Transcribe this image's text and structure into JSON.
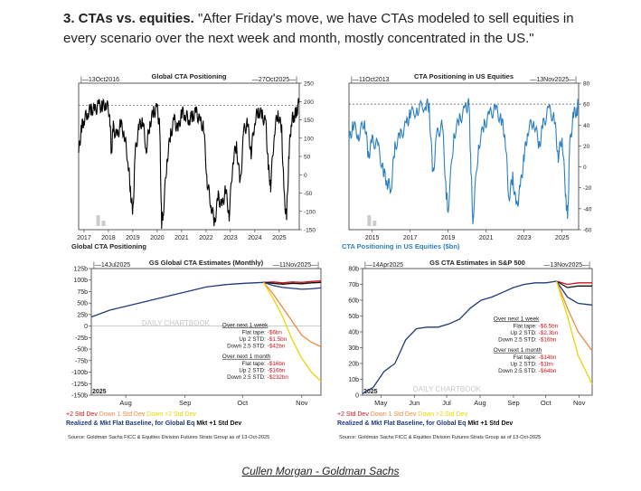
{
  "heading": {
    "prefix": "3. CTAs vs. equities.",
    "quote": " \"After Friday's move, we have CTAs modeled to sell equities in every scenario over the next week and month, mostly concentrated in the US.\""
  },
  "caption": "Cullen Morgan - Goldman Sachs",
  "colors": {
    "black": "#000000",
    "blue": "#2a7fc0",
    "navy": "#1f3a7a",
    "red": "#d0141c",
    "orange": "#f08a3c",
    "yellow": "#e8d600",
    "grey": "#888888"
  },
  "chart_data": [
    {
      "id": "global-cta",
      "type": "line",
      "title": "Global CTA Positioning",
      "start_label": "13Oct2016",
      "end_label": "27Oct2025",
      "xlabel": "Global CTA Positioning",
      "x_ticks": [
        "2017",
        "2018",
        "2019",
        "2020",
        "2021",
        "2022",
        "2023",
        "2024",
        "2025"
      ],
      "x_range": [
        2016.78,
        2025.82
      ],
      "ylim": [
        -150,
        250
      ],
      "y_ticks": [
        -150,
        -100,
        -50,
        0,
        50,
        100,
        150,
        200,
        250
      ],
      "ref_line": 190,
      "series": [
        {
          "name": "Global CTA Positioning",
          "color": "#000000",
          "x": [
            2016.78,
            2016.9,
            2017.0,
            2017.15,
            2017.3,
            2017.45,
            2017.6,
            2017.75,
            2017.9,
            2018.05,
            2018.12,
            2018.2,
            2018.35,
            2018.5,
            2018.65,
            2018.8,
            2018.9,
            2019.0,
            2019.1,
            2019.25,
            2019.4,
            2019.55,
            2019.7,
            2019.85,
            2020.0,
            2020.1,
            2020.18,
            2020.25,
            2020.4,
            2020.55,
            2020.7,
            2020.85,
            2021.0,
            2021.15,
            2021.3,
            2021.45,
            2021.6,
            2021.75,
            2021.9,
            2022.05,
            2022.2,
            2022.35,
            2022.5,
            2022.65,
            2022.8,
            2022.95,
            2023.1,
            2023.25,
            2023.4,
            2023.55,
            2023.7,
            2023.85,
            2024.0,
            2024.15,
            2024.3,
            2024.45,
            2024.55,
            2024.65,
            2024.8,
            2024.95,
            2025.1,
            2025.2,
            2025.3,
            2025.4,
            2025.5,
            2025.6,
            2025.7,
            2025.82
          ],
          "values": [
            60,
            130,
            150,
            170,
            180,
            175,
            190,
            185,
            195,
            170,
            60,
            130,
            100,
            140,
            110,
            40,
            -40,
            -110,
            60,
            130,
            150,
            70,
            140,
            170,
            180,
            130,
            -130,
            -100,
            40,
            110,
            150,
            120,
            170,
            165,
            150,
            160,
            170,
            145,
            130,
            -20,
            -80,
            -130,
            -60,
            -90,
            -40,
            -110,
            40,
            80,
            -30,
            120,
            140,
            60,
            150,
            175,
            160,
            140,
            20,
            -30,
            120,
            170,
            120,
            -60,
            -120,
            60,
            150,
            160,
            170,
            200
          ]
        }
      ]
    },
    {
      "id": "cta-us-equities",
      "type": "line",
      "title": "CTA Positioning in US Equities",
      "start_label": "11Oct2013",
      "end_label": "13Nov2025",
      "xlabel": "CTA Positioning in US Equities ($bn)",
      "x_ticks": [
        "2015",
        "2017",
        "2019",
        "2021",
        "2023",
        "2025"
      ],
      "x_range": [
        2013.78,
        2025.87
      ],
      "ylim": [
        -60,
        80
      ],
      "y_ticks": [
        -60,
        -40,
        -20,
        0,
        20,
        40,
        60,
        80
      ],
      "ref_line": 60,
      "series": [
        {
          "name": "CTA Positioning in US Equities ($bn)",
          "color": "#2a7fc0",
          "x": [
            2013.78,
            2014.0,
            2014.3,
            2014.6,
            2014.8,
            2015.0,
            2015.3,
            2015.6,
            2015.8,
            2016.0,
            2016.2,
            2016.5,
            2016.8,
            2017.0,
            2017.4,
            2017.8,
            2018.0,
            2018.2,
            2018.4,
            2018.7,
            2018.9,
            2019.0,
            2019.3,
            2019.6,
            2019.9,
            2020.1,
            2020.2,
            2020.3,
            2020.6,
            2020.9,
            2021.2,
            2021.5,
            2021.8,
            2022.0,
            2022.2,
            2022.4,
            2022.6,
            2022.8,
            2023.0,
            2023.2,
            2023.5,
            2023.8,
            2024.0,
            2024.3,
            2024.6,
            2024.8,
            2025.0,
            2025.2,
            2025.3,
            2025.4,
            2025.6,
            2025.8,
            2025.87
          ],
          "values": [
            25,
            40,
            30,
            45,
            10,
            25,
            20,
            -5,
            -15,
            -20,
            20,
            30,
            40,
            50,
            55,
            60,
            58,
            -10,
            30,
            40,
            -25,
            -40,
            30,
            45,
            55,
            60,
            0,
            -50,
            20,
            40,
            50,
            55,
            45,
            30,
            -30,
            -10,
            -40,
            -20,
            10,
            35,
            45,
            20,
            40,
            55,
            45,
            10,
            30,
            -30,
            -50,
            20,
            50,
            55,
            65
          ]
        }
      ]
    },
    {
      "id": "gs-cta-estimates-monthly",
      "type": "line",
      "title": "GS Global CTA Estimates (Monthly)",
      "start_label": "14Jul2025",
      "end_label": "11Nov2025",
      "x_ticks": [
        "Aug",
        "Sep",
        "Oct",
        "Nov"
      ],
      "year_label": "2025",
      "watermark": "DAILY CHARTBOOK",
      "x_range": [
        0,
        120
      ],
      "x_tick_positions": [
        18,
        49,
        79,
        110
      ],
      "ylim": [
        -150,
        125
      ],
      "y_ticks": [
        "125b",
        "100b",
        "75b",
        "50b",
        "25b",
        "0",
        "-25b",
        "-50b",
        "-75b",
        "-100b",
        "-125b",
        "-150b"
      ],
      "y_tick_values": [
        125,
        100,
        75,
        50,
        25,
        0,
        -25,
        -50,
        -75,
        -100,
        -125,
        -150
      ],
      "series": [
        {
          "name": "Realized",
          "color": "#1f3a7a",
          "x": [
            0,
            10,
            20,
            30,
            40,
            50,
            60,
            70,
            80,
            90
          ],
          "values": [
            20,
            35,
            45,
            55,
            65,
            75,
            85,
            90,
            93,
            95
          ]
        },
        {
          "name": "+2 Std Dev",
          "color": "#d0141c",
          "x": [
            90,
            95,
            100,
            105,
            110,
            115,
            120
          ],
          "values": [
            95,
            96,
            94,
            96,
            95,
            97,
            98
          ]
        },
        {
          "name": "Mkt +1 Std Dev",
          "color": "#111111",
          "x": [
            90,
            95,
            100,
            105,
            110,
            115,
            120
          ],
          "values": [
            95,
            93,
            91,
            93,
            92,
            94,
            95
          ]
        },
        {
          "name": "Flat Baseline",
          "color": "#1f3a7a",
          "x": [
            90,
            95,
            100,
            105,
            110,
            115,
            120
          ],
          "values": [
            95,
            88,
            84,
            82,
            80,
            81,
            83
          ]
        },
        {
          "name": "Down 1 Std Dev",
          "color": "#f08a3c",
          "x": [
            90,
            95,
            100,
            105,
            110,
            115,
            120
          ],
          "values": [
            95,
            70,
            40,
            10,
            -20,
            -35,
            -45
          ]
        },
        {
          "name": "Down >2 Std Dev",
          "color": "#e8d600",
          "x": [
            90,
            95,
            100,
            105,
            110,
            115,
            120
          ],
          "values": [
            95,
            60,
            20,
            -30,
            -70,
            -100,
            -120
          ]
        }
      ],
      "annotation": {
        "week_title": "Over next 1 week",
        "week_lines": [
          [
            "Flat tape:",
            "-$6bn"
          ],
          [
            "Up 2 STD:",
            "-$1.5bn"
          ],
          [
            "Down 2.5 STD:",
            "-$42bn"
          ]
        ],
        "month_title": "Over next 1 month",
        "month_lines": [
          [
            "Flat tape:",
            "-$16bn"
          ],
          [
            "Up 2 STD:",
            "-$16bn"
          ],
          [
            "Down 2.5 STD:",
            "-$232bn"
          ]
        ]
      },
      "legend_line1": [
        [
          "+2 Std Dev",
          "#d0141c"
        ],
        [
          " Down 1 Std Dev",
          "#f08a3c"
        ],
        [
          " Down >2 Std Dev",
          "#e8d600"
        ]
      ],
      "legend_line2": "Realized & Mkt Flat Baseline, for Global Eq",
      "legend_line2b": " Mkt +1 Std Dev",
      "source": "Source: Goldman Sachs FICC & Equities Division Futures Strats Group as of 13-Oct-2025"
    },
    {
      "id": "gs-cta-estimates-sp500",
      "type": "line",
      "title": "GS CTA Estimates in S&P 500",
      "start_label": "14Apr2025",
      "end_label": "13Nov2025",
      "x_ticks": [
        "May",
        "Jun",
        "Jul",
        "Aug",
        "Sep",
        "Oct",
        "Nov"
      ],
      "year_label": "2025",
      "watermark": "DAILY CHARTBOOK",
      "x_range": [
        0,
        213
      ],
      "x_tick_positions": [
        17,
        48,
        78,
        109,
        140,
        170,
        201
      ],
      "ylim": [
        0,
        80
      ],
      "y_ticks": [
        "80b",
        "70b",
        "60b",
        "50b",
        "40b",
        "30b",
        "20b",
        "10b",
        "0"
      ],
      "y_tick_values": [
        80,
        70,
        60,
        50,
        40,
        30,
        20,
        10,
        0
      ],
      "series": [
        {
          "name": "Realized",
          "color": "#1f3a7a",
          "x": [
            0,
            10,
            20,
            30,
            40,
            50,
            60,
            70,
            80,
            90,
            100,
            110,
            120,
            130,
            140,
            150,
            160,
            170,
            180
          ],
          "values": [
            1,
            5,
            15,
            20,
            35,
            42,
            43,
            43,
            45,
            48,
            55,
            60,
            62,
            65,
            68,
            70,
            71,
            71,
            72
          ]
        },
        {
          "name": "+2 Std Dev",
          "color": "#d0141c",
          "x": [
            180,
            190,
            200,
            213
          ],
          "values": [
            72,
            70,
            71,
            71
          ]
        },
        {
          "name": "Mkt +1 Std Dev",
          "color": "#111111",
          "x": [
            180,
            190,
            200,
            213
          ],
          "values": [
            72,
            68,
            69,
            69
          ]
        },
        {
          "name": "Flat Baseline",
          "color": "#1f3a7a",
          "x": [
            180,
            190,
            200,
            213
          ],
          "values": [
            72,
            62,
            58,
            57
          ]
        },
        {
          "name": "Down 1 Std Dev",
          "color": "#f08a3c",
          "x": [
            180,
            190,
            200,
            213
          ],
          "values": [
            72,
            55,
            40,
            28
          ]
        },
        {
          "name": "Down >2 Std Dev",
          "color": "#e8d600",
          "x": [
            180,
            190,
            200,
            213
          ],
          "values": [
            72,
            50,
            25,
            7
          ]
        }
      ],
      "annotation": {
        "week_title": "Over next 1 week",
        "week_lines": [
          [
            "Flat tape:",
            "-$6.5bn"
          ],
          [
            "Up 2 STD:",
            "-$2.3bn"
          ],
          [
            "Down 2.5 STD:",
            "-$16bn"
          ]
        ],
        "month_title": "Over next 1 month",
        "month_lines": [
          [
            "Flat tape:",
            "-$14bn"
          ],
          [
            "Up 2 STD:",
            "-$1bn"
          ],
          [
            "Down 2.5 STD:",
            "-$64bn"
          ]
        ]
      },
      "legend_line1": [
        [
          "+2 Std Dev",
          "#d0141c"
        ],
        [
          " Down 1 Std Dev",
          "#f08a3c"
        ],
        [
          " Down >2 Std Dev",
          "#e8d600"
        ]
      ],
      "legend_line2": "Realized & Mkt Flat Baseline, for Global Eq",
      "legend_line2b": " Mkt +1 Std Dev",
      "source": "Source: Goldman Sachs FICC & Equities Division Futures Strats Group as of 13-Oct-2025"
    }
  ]
}
